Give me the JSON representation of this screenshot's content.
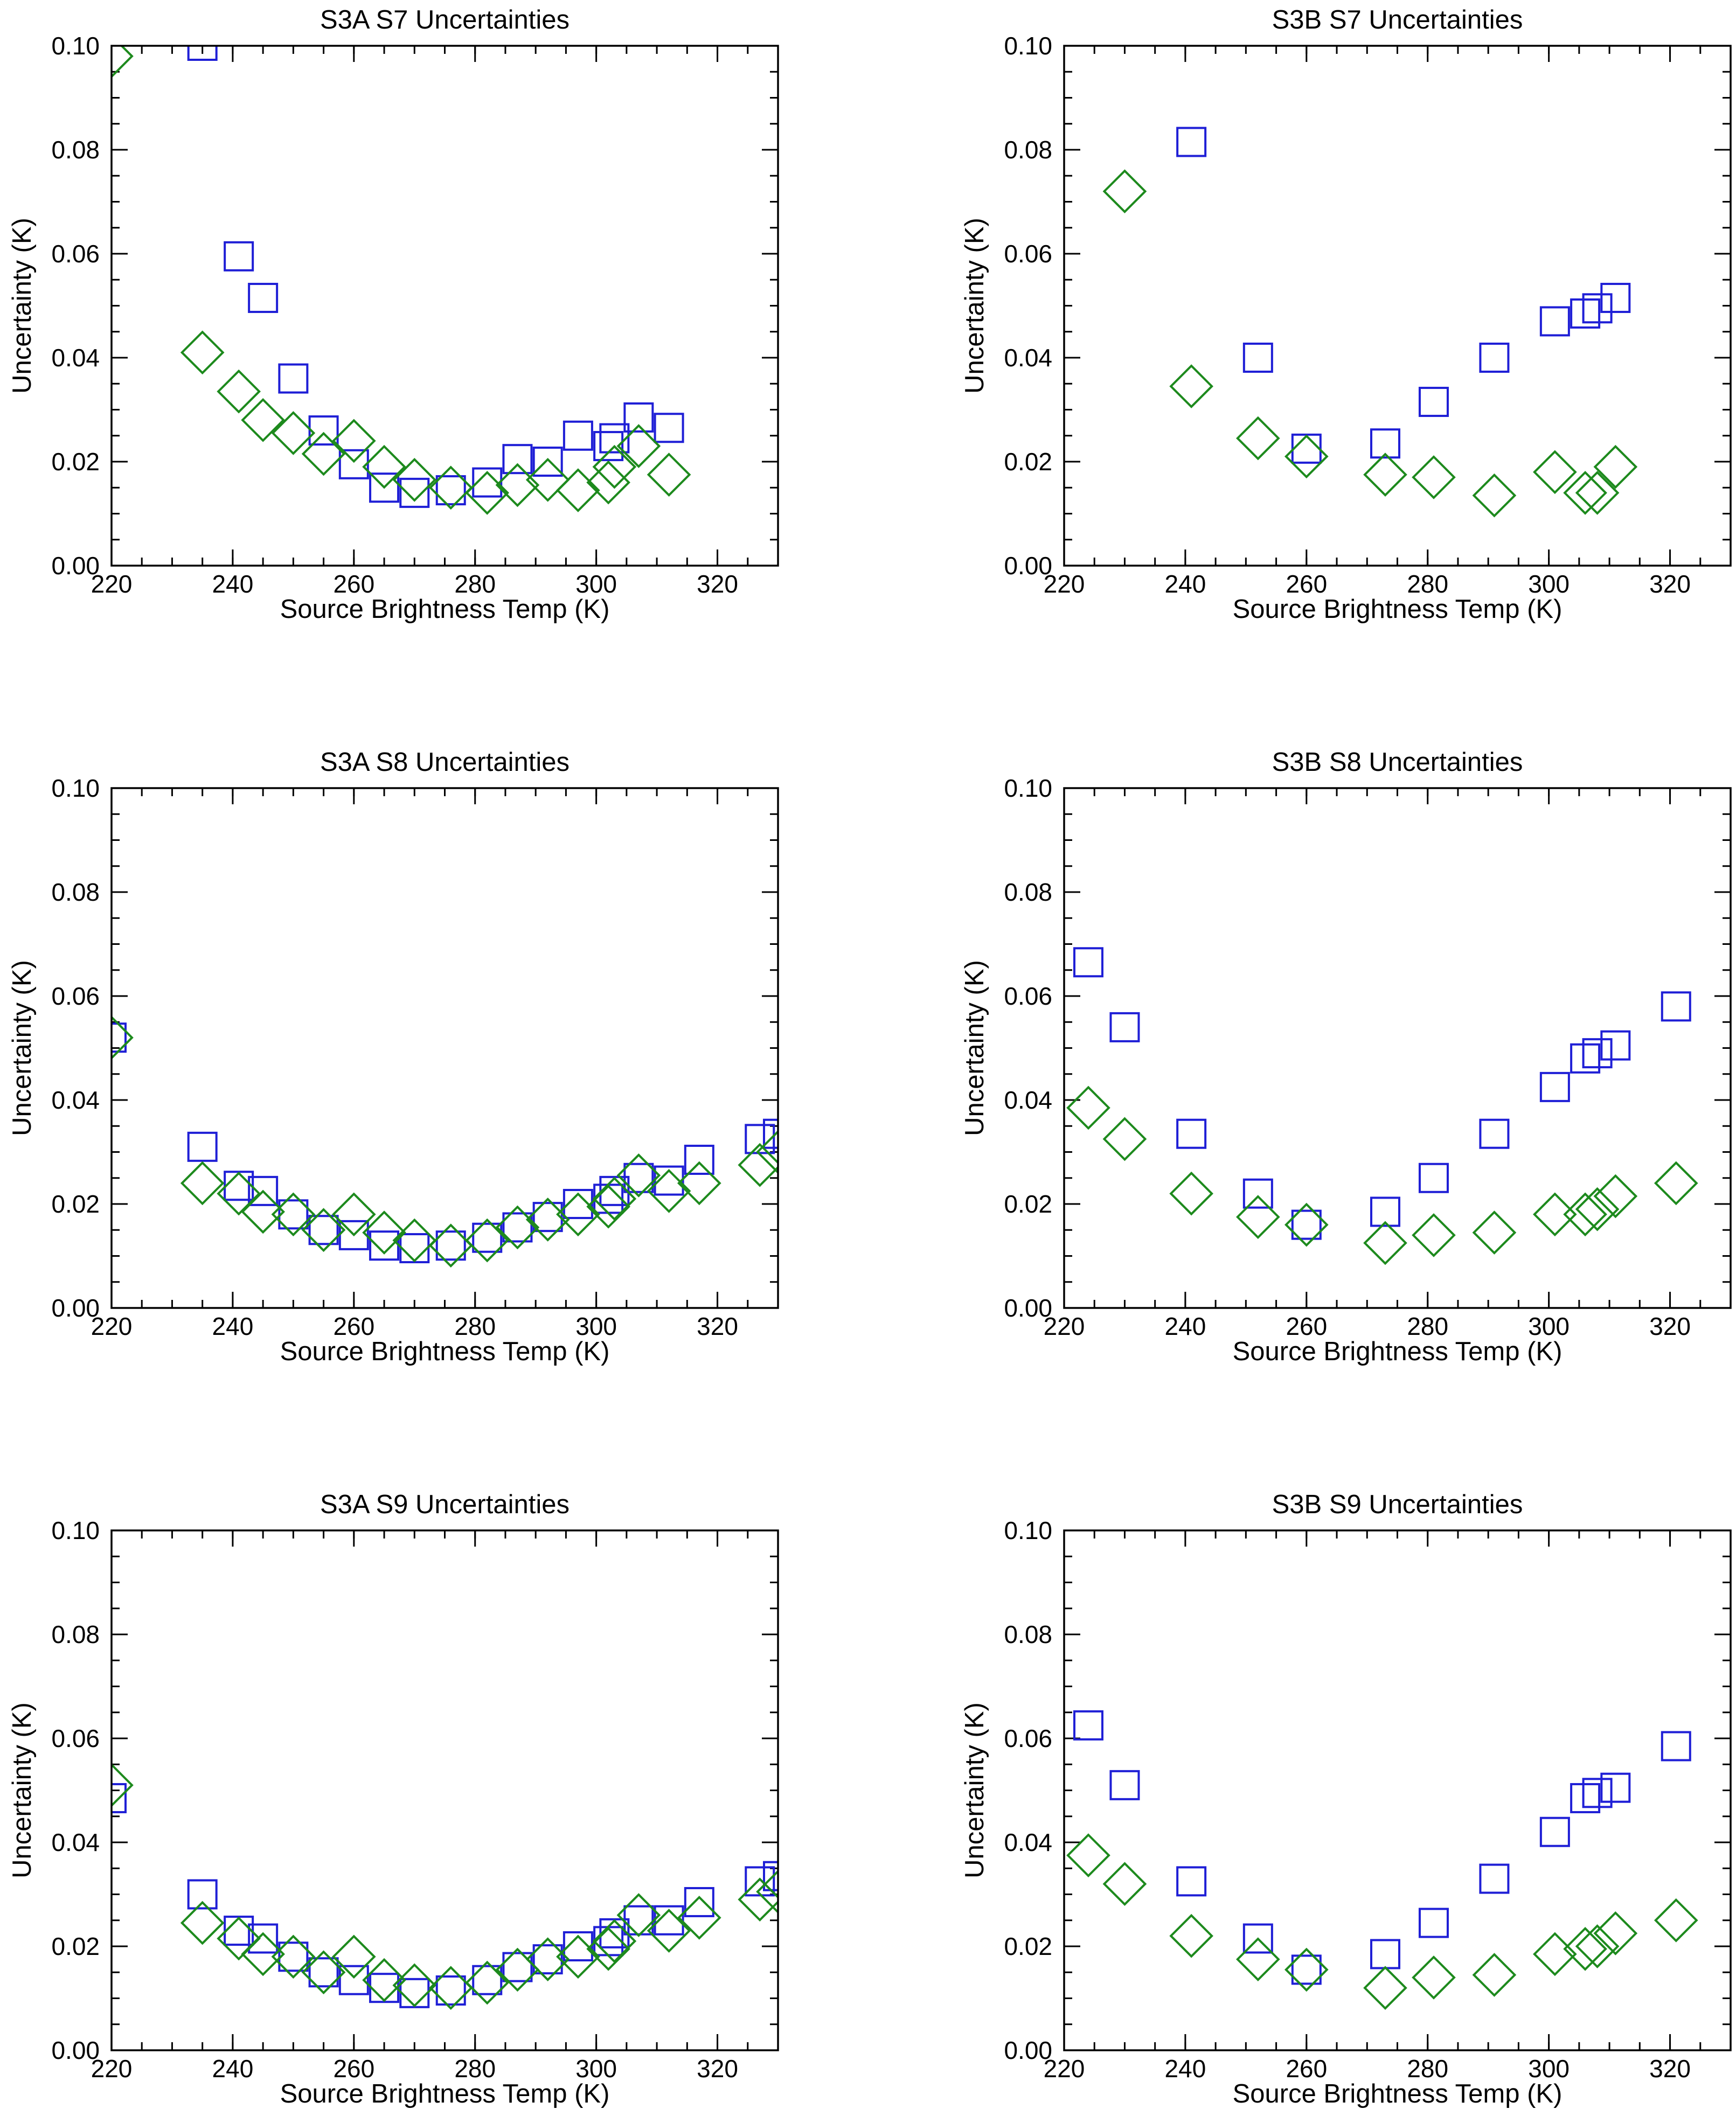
{
  "figure": {
    "rows": 3,
    "cols": 2
  },
  "style": {
    "square_color": "#1f1fd6",
    "diamond_color": "#1d8a1d",
    "axis_color": "#000000",
    "background": "#ffffff"
  },
  "chart_data": [
    {
      "type": "scatter",
      "title": "S3A S7 Uncertainties",
      "xlabel": "Source Brightness Temp (K)",
      "ylabel": "Uncertainty (K)",
      "xlim": [
        220,
        330
      ],
      "ylim": [
        0.0,
        0.1
      ],
      "xticks": [
        220,
        240,
        260,
        280,
        300,
        320
      ],
      "xtick_labels": [
        "220",
        "240",
        "260",
        "280",
        "300",
        "320"
      ],
      "yticks": [
        0.0,
        0.02,
        0.04,
        0.06,
        0.08,
        0.1
      ],
      "ytick_labels": [
        "0.00",
        "0.02",
        "0.04",
        "0.06",
        "0.08",
        "0.10"
      ],
      "series": [
        {
          "name": "squares",
          "marker": "square",
          "x": [
            235,
            241,
            245,
            250,
            255,
            260,
            265,
            270,
            276,
            282,
            287,
            292,
            297,
            302,
            303,
            307,
            312
          ],
          "y": [
            0.1,
            0.0595,
            0.0515,
            0.036,
            0.026,
            0.0195,
            0.015,
            0.014,
            0.0145,
            0.016,
            0.0205,
            0.02,
            0.025,
            0.023,
            0.0245,
            0.0285,
            0.0265
          ]
        },
        {
          "name": "diamonds",
          "marker": "diamond",
          "x": [
            220,
            235,
            241,
            245,
            250,
            255,
            260,
            265,
            270,
            276,
            282,
            287,
            292,
            297,
            302,
            303,
            307,
            312
          ],
          "y": [
            0.098,
            0.041,
            0.0335,
            0.028,
            0.0255,
            0.0215,
            0.024,
            0.019,
            0.0165,
            0.015,
            0.014,
            0.0155,
            0.0165,
            0.0145,
            0.016,
            0.019,
            0.023,
            0.0175
          ]
        }
      ]
    },
    {
      "type": "scatter",
      "title": "S3B S7 Uncertainties",
      "xlabel": "Source Brightness Temp (K)",
      "ylabel": "Uncertainty (K)",
      "xlim": [
        220,
        330
      ],
      "ylim": [
        0.0,
        0.1
      ],
      "xticks": [
        220,
        240,
        260,
        280,
        300,
        320
      ],
      "xtick_labels": [
        "220",
        "240",
        "260",
        "280",
        "300",
        "320"
      ],
      "yticks": [
        0.0,
        0.02,
        0.04,
        0.06,
        0.08,
        0.1
      ],
      "ytick_labels": [
        "0.00",
        "0.02",
        "0.04",
        "0.06",
        "0.08",
        "0.10"
      ],
      "series": [
        {
          "name": "squares",
          "marker": "square",
          "x": [
            241,
            252,
            260,
            273,
            281,
            291,
            301,
            306,
            308,
            311
          ],
          "y": [
            0.0815,
            0.04,
            0.0225,
            0.0235,
            0.0315,
            0.04,
            0.047,
            0.0485,
            0.0495,
            0.0515
          ]
        },
        {
          "name": "diamonds",
          "marker": "diamond",
          "x": [
            230,
            241,
            252,
            260,
            273,
            281,
            291,
            301,
            306,
            308,
            311
          ],
          "y": [
            0.072,
            0.0345,
            0.0245,
            0.021,
            0.0175,
            0.017,
            0.0135,
            0.018,
            0.014,
            0.014,
            0.019
          ]
        }
      ]
    },
    {
      "type": "scatter",
      "title": "S3A S8 Uncertainties",
      "xlabel": "Source Brightness Temp (K)",
      "ylabel": "Uncertainty (K)",
      "xlim": [
        220,
        330
      ],
      "ylim": [
        0.0,
        0.1
      ],
      "xticks": [
        220,
        240,
        260,
        280,
        300,
        320
      ],
      "xtick_labels": [
        "220",
        "240",
        "260",
        "280",
        "300",
        "320"
      ],
      "yticks": [
        0.0,
        0.02,
        0.04,
        0.06,
        0.08,
        0.1
      ],
      "ytick_labels": [
        "0.00",
        "0.02",
        "0.04",
        "0.06",
        "0.08",
        "0.10"
      ],
      "series": [
        {
          "name": "squares",
          "marker": "square",
          "x": [
            220,
            235,
            241,
            245,
            250,
            255,
            260,
            265,
            270,
            276,
            282,
            287,
            292,
            297,
            302,
            303,
            307,
            312,
            317,
            327,
            330
          ],
          "y": [
            0.052,
            0.031,
            0.0235,
            0.0225,
            0.018,
            0.015,
            0.014,
            0.012,
            0.0115,
            0.012,
            0.0135,
            0.0155,
            0.0175,
            0.02,
            0.021,
            0.0225,
            0.025,
            0.0245,
            0.0285,
            0.0325,
            0.0335
          ]
        },
        {
          "name": "diamonds",
          "marker": "diamond",
          "x": [
            220,
            235,
            241,
            245,
            250,
            255,
            260,
            265,
            270,
            276,
            282,
            287,
            292,
            297,
            302,
            303,
            307,
            312,
            317,
            327,
            330
          ],
          "y": [
            0.052,
            0.024,
            0.022,
            0.0185,
            0.018,
            0.015,
            0.018,
            0.0145,
            0.013,
            0.012,
            0.013,
            0.0155,
            0.017,
            0.018,
            0.0195,
            0.021,
            0.0255,
            0.0225,
            0.024,
            0.0275,
            0.03
          ]
        }
      ]
    },
    {
      "type": "scatter",
      "title": "S3B S8 Uncertainties",
      "xlabel": "Source Brightness Temp (K)",
      "ylabel": "Uncertainty (K)",
      "xlim": [
        220,
        330
      ],
      "ylim": [
        0.0,
        0.1
      ],
      "xticks": [
        220,
        240,
        260,
        280,
        300,
        320
      ],
      "xtick_labels": [
        "220",
        "240",
        "260",
        "280",
        "300",
        "320"
      ],
      "yticks": [
        0.0,
        0.02,
        0.04,
        0.06,
        0.08,
        0.1
      ],
      "ytick_labels": [
        "0.00",
        "0.02",
        "0.04",
        "0.06",
        "0.08",
        "0.10"
      ],
      "series": [
        {
          "name": "squares",
          "marker": "square",
          "x": [
            224,
            230,
            241,
            252,
            260,
            273,
            281,
            291,
            301,
            306,
            308,
            311,
            321
          ],
          "y": [
            0.0665,
            0.054,
            0.0335,
            0.022,
            0.016,
            0.0185,
            0.025,
            0.0335,
            0.0425,
            0.048,
            0.049,
            0.0505,
            0.058
          ]
        },
        {
          "name": "diamonds",
          "marker": "diamond",
          "x": [
            224,
            230,
            241,
            252,
            260,
            273,
            281,
            291,
            301,
            306,
            308,
            311,
            321
          ],
          "y": [
            0.0385,
            0.0325,
            0.022,
            0.0175,
            0.016,
            0.0125,
            0.014,
            0.0145,
            0.018,
            0.018,
            0.019,
            0.0215,
            0.024
          ]
        }
      ]
    },
    {
      "type": "scatter",
      "title": "S3A S9 Uncertainties",
      "xlabel": "Source Brightness Temp (K)",
      "ylabel": "Uncertainty (K)",
      "xlim": [
        220,
        330
      ],
      "ylim": [
        0.0,
        0.1
      ],
      "xticks": [
        220,
        240,
        260,
        280,
        300,
        320
      ],
      "xtick_labels": [
        "220",
        "240",
        "260",
        "280",
        "300",
        "320"
      ],
      "yticks": [
        0.0,
        0.02,
        0.04,
        0.06,
        0.08,
        0.1
      ],
      "ytick_labels": [
        "0.00",
        "0.02",
        "0.04",
        "0.06",
        "0.08",
        "0.10"
      ],
      "series": [
        {
          "name": "squares",
          "marker": "square",
          "x": [
            220,
            235,
            241,
            245,
            250,
            255,
            260,
            265,
            270,
            276,
            282,
            287,
            292,
            297,
            302,
            303,
            307,
            312,
            317,
            327,
            330
          ],
          "y": [
            0.0485,
            0.03,
            0.023,
            0.0215,
            0.018,
            0.015,
            0.0135,
            0.012,
            0.011,
            0.0115,
            0.0135,
            0.016,
            0.0175,
            0.02,
            0.021,
            0.0225,
            0.025,
            0.025,
            0.0285,
            0.0325,
            0.0335
          ]
        },
        {
          "name": "diamonds",
          "marker": "diamond",
          "x": [
            220,
            235,
            241,
            245,
            250,
            255,
            260,
            265,
            270,
            276,
            282,
            287,
            292,
            297,
            302,
            303,
            307,
            312,
            317,
            327,
            330
          ],
          "y": [
            0.051,
            0.0245,
            0.0215,
            0.0185,
            0.018,
            0.015,
            0.018,
            0.0135,
            0.0125,
            0.012,
            0.013,
            0.0155,
            0.0175,
            0.018,
            0.0195,
            0.021,
            0.026,
            0.023,
            0.0255,
            0.029,
            0.0305
          ]
        }
      ]
    },
    {
      "type": "scatter",
      "title": "S3B S9 Uncertainties",
      "xlabel": "Source Brightness Temp (K)",
      "ylabel": "Uncertainty (K)",
      "xlim": [
        220,
        330
      ],
      "ylim": [
        0.0,
        0.1
      ],
      "xticks": [
        220,
        240,
        260,
        280,
        300,
        320
      ],
      "xtick_labels": [
        "220",
        "240",
        "260",
        "280",
        "300",
        "320"
      ],
      "yticks": [
        0.0,
        0.02,
        0.04,
        0.06,
        0.08,
        0.1
      ],
      "ytick_labels": [
        "0.00",
        "0.02",
        "0.04",
        "0.06",
        "0.08",
        "0.10"
      ],
      "series": [
        {
          "name": "squares",
          "marker": "square",
          "x": [
            224,
            230,
            241,
            252,
            260,
            273,
            281,
            291,
            301,
            306,
            308,
            311,
            321
          ],
          "y": [
            0.0625,
            0.051,
            0.0325,
            0.0215,
            0.0155,
            0.0185,
            0.0245,
            0.033,
            0.042,
            0.0485,
            0.0495,
            0.0505,
            0.0585
          ]
        },
        {
          "name": "diamonds",
          "marker": "diamond",
          "x": [
            224,
            230,
            241,
            252,
            260,
            273,
            281,
            291,
            301,
            306,
            308,
            311,
            321
          ],
          "y": [
            0.0375,
            0.032,
            0.022,
            0.0175,
            0.0155,
            0.012,
            0.014,
            0.0145,
            0.0185,
            0.0195,
            0.02,
            0.0225,
            0.025
          ]
        }
      ]
    }
  ]
}
